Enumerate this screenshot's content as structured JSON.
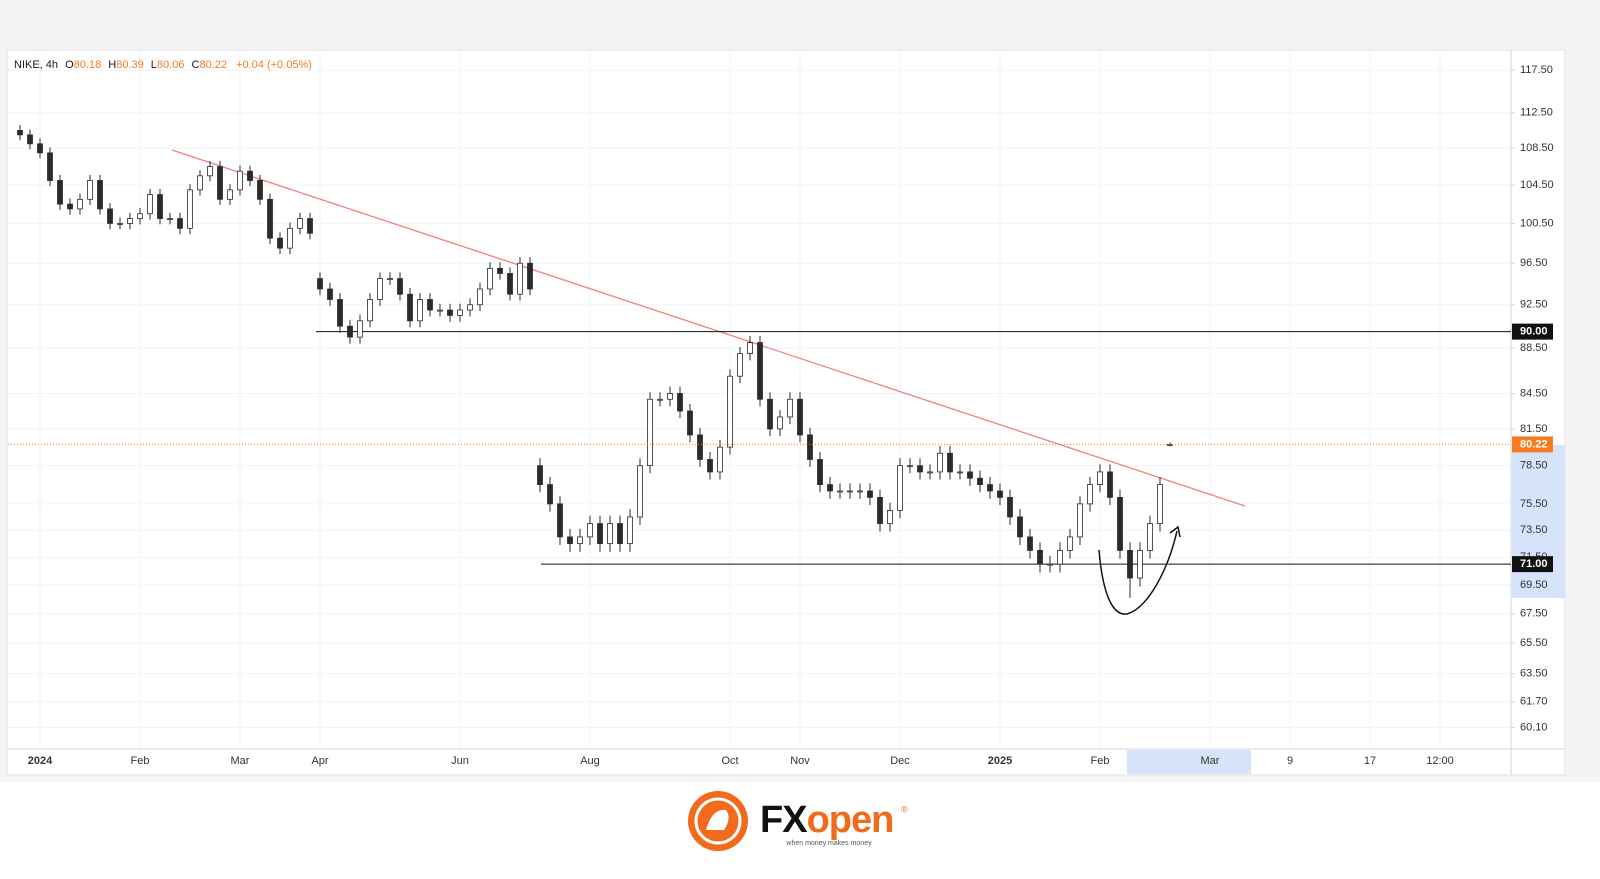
{
  "chart_data": {
    "type": "candlestick",
    "legend": {
      "symbol": "NIKE, 4h",
      "o": "O",
      "h": "H",
      "l": "L",
      "c": "C",
      "change_label": "+0.04 (+0.05%)"
    },
    "log_scale": true,
    "grid": true,
    "up_color": "#ffffff",
    "down_color": "#2b2b2b",
    "edge_color": "#2b2b2b",
    "last_price_color": "#f57c1f",
    "trendline_color": "#f08080",
    "level_color": "#111111",
    "ylim": [
      58.8,
      119.7
    ],
    "yticks": [
      {
        "value": 117.5,
        "label": "117.50"
      },
      {
        "value": 112.5,
        "label": "112.50"
      },
      {
        "value": 108.5,
        "label": "108.50"
      },
      {
        "value": 104.5,
        "label": "104.50"
      },
      {
        "value": 100.5,
        "label": "100.50"
      },
      {
        "value": 96.5,
        "label": "96.50"
      },
      {
        "value": 92.5,
        "label": "92.50"
      },
      {
        "value": 88.5,
        "label": "88.50"
      },
      {
        "value": 84.5,
        "label": "84.50"
      },
      {
        "value": 81.5,
        "label": "81.50"
      },
      {
        "value": 78.5,
        "label": "78.50"
      },
      {
        "value": 75.5,
        "label": "75.50"
      },
      {
        "value": 73.5,
        "label": "73.50"
      },
      {
        "value": 71.5,
        "label": "71.50"
      },
      {
        "value": 69.5,
        "label": "69.50"
      },
      {
        "value": 67.5,
        "label": "67.50"
      },
      {
        "value": 65.5,
        "label": "65.50"
      },
      {
        "value": 63.5,
        "label": "63.50"
      },
      {
        "value": 61.7,
        "label": "61.70"
      },
      {
        "value": 60.1,
        "label": "60.10"
      }
    ],
    "levels": [
      {
        "value": 90,
        "label": "90.00"
      },
      {
        "value": 71,
        "label": "71.00"
      }
    ],
    "categories": [
      null,
      null,
      "2024",
      null,
      null,
      null,
      null,
      null,
      null,
      null,
      null,
      null,
      "Feb",
      null,
      null,
      null,
      null,
      null,
      null,
      null,
      null,
      null,
      "Mar",
      null,
      null,
      null,
      null,
      null,
      null,
      null,
      "Apr",
      null,
      null,
      null,
      null,
      null,
      null,
      null,
      null,
      null,
      null,
      null,
      null,
      null,
      "Jun",
      null,
      null,
      null,
      null,
      null,
      null,
      null,
      null,
      null,
      null,
      null,
      null,
      "Aug",
      null,
      null,
      null,
      null,
      null,
      null,
      null,
      null,
      null,
      null,
      null,
      null,
      null,
      "Oct",
      null,
      null,
      null,
      null,
      null,
      null,
      "Nov",
      null,
      null,
      null,
      null,
      null,
      null,
      null,
      null,
      null,
      "Dec",
      null,
      null,
      null,
      null,
      null,
      null,
      null,
      null,
      null,
      "2025",
      null,
      null,
      null,
      null,
      null,
      null,
      null,
      null,
      null,
      "Feb",
      null,
      null,
      null,
      null,
      null,
      null,
      null,
      null,
      null,
      null,
      "Mar",
      null,
      null,
      null,
      null,
      null,
      null,
      null,
      "9",
      null,
      null,
      null,
      null,
      null,
      null,
      null,
      "17",
      null,
      null,
      null,
      null,
      null,
      null,
      "12:00",
      null,
      null,
      null,
      null,
      null,
      null
    ],
    "open": [
      110.5,
      110,
      109,
      108,
      105,
      102.5,
      102,
      103,
      105,
      102,
      100.5,
      100.5,
      101,
      101.5,
      103.5,
      101,
      101,
      100,
      104,
      105.5,
      106.5,
      103,
      104,
      106,
      105,
      103,
      99,
      98,
      100,
      101,
      95,
      94,
      93,
      90.5,
      89.5,
      91,
      93,
      95,
      95,
      93.5,
      91,
      93,
      92,
      92,
      91.5,
      92,
      92.5,
      94,
      96,
      95.5,
      93.5,
      96.5,
      78.5,
      77,
      75.5,
      73,
      72.5,
      73,
      74,
      72.5,
      74,
      72.5,
      74.5,
      78.5,
      84,
      84,
      84.5,
      83,
      81,
      79,
      78,
      80,
      86,
      88,
      89,
      84,
      81.5,
      82.5,
      84,
      81,
      79,
      77,
      76.5,
      76.5,
      76.5,
      76.5,
      76,
      74,
      75,
      78.5,
      78.5,
      78,
      78,
      79.5,
      78,
      78,
      77.5,
      77,
      76.5,
      76,
      74.5,
      73,
      72,
      71,
      71,
      72,
      73,
      75.5,
      77,
      78,
      76,
      72,
      70,
      72,
      74,
      80.18,
      null,
      null,
      null,
      null,
      null,
      null,
      null,
      null,
      null,
      null,
      null,
      null,
      null,
      null,
      null,
      null,
      null,
      null,
      null,
      null,
      null,
      null,
      null,
      null,
      null,
      null,
      null,
      null,
      null,
      null,
      null,
      null,
      null
    ],
    "high": [
      111.1,
      110.6,
      109.6,
      108.6,
      105.6,
      103.1,
      103.6,
      105.6,
      105.6,
      102.6,
      101.1,
      101.6,
      102.1,
      104.1,
      104.1,
      101.6,
      101.6,
      104.6,
      106.1,
      107.1,
      107.1,
      104.6,
      106.6,
      106.6,
      105.6,
      103.6,
      99.6,
      100.6,
      101.6,
      101.6,
      95.6,
      94.6,
      93.6,
      91.1,
      91.6,
      93.6,
      95.6,
      95.6,
      95.6,
      94.1,
      93.6,
      93.6,
      92.6,
      92.6,
      92.6,
      93.1,
      94.6,
      96.6,
      96.6,
      96.1,
      97.1,
      97.1,
      79.1,
      77.6,
      76.1,
      73.6,
      73.6,
      74.6,
      74.6,
      74.6,
      74.6,
      75.1,
      79.1,
      84.6,
      84.6,
      85.1,
      85.1,
      83.6,
      81.6,
      79.6,
      80.6,
      86.6,
      88.6,
      89.6,
      89.6,
      84.6,
      83.1,
      84.6,
      84.6,
      81.6,
      79.6,
      77.6,
      77.1,
      77.1,
      77.1,
      77.1,
      76.6,
      75.6,
      79.1,
      79.1,
      79.1,
      78.6,
      80.1,
      80.1,
      78.6,
      78.6,
      78.1,
      77.6,
      77.1,
      76.6,
      75.1,
      73.6,
      72.6,
      71.6,
      72.6,
      73.6,
      76.1,
      77.6,
      78.6,
      78.6,
      76.6,
      72.6,
      72.6,
      74.6,
      77.6,
      80.39,
      null,
      null,
      null,
      null,
      null,
      null,
      null,
      null,
      null,
      null,
      null,
      null,
      null,
      null,
      null,
      null,
      null,
      null,
      null,
      null,
      null,
      null,
      null,
      null,
      null,
      null,
      null,
      null,
      null,
      null,
      null,
      null,
      null
    ],
    "low": [
      109.4,
      108.4,
      107.4,
      104.4,
      101.9,
      101.4,
      101.4,
      102.4,
      101.4,
      99.9,
      99.9,
      99.9,
      100.4,
      100.9,
      100.4,
      100.4,
      99.4,
      99.4,
      103.4,
      104.9,
      102.4,
      102.4,
      103.4,
      104.4,
      102.4,
      98.4,
      97.4,
      97.4,
      99.4,
      98.9,
      93.4,
      92.4,
      89.9,
      88.9,
      88.9,
      90.4,
      92.4,
      94.4,
      92.9,
      90.4,
      90.4,
      91.4,
      91.4,
      90.9,
      90.9,
      91.4,
      91.9,
      93.4,
      94.9,
      92.9,
      92.9,
      93.4,
      76.4,
      74.9,
      72.4,
      71.9,
      71.9,
      72.4,
      71.9,
      71.9,
      71.9,
      71.9,
      73.9,
      77.9,
      83.4,
      83.4,
      82.4,
      80.4,
      78.4,
      77.4,
      77.4,
      79.4,
      85.4,
      87.4,
      83.4,
      80.9,
      80.9,
      81.9,
      80.4,
      78.4,
      76.4,
      75.9,
      75.9,
      75.9,
      75.9,
      75.4,
      73.4,
      73.4,
      74.4,
      77.9,
      77.4,
      77.4,
      77.4,
      77.4,
      77.4,
      76.9,
      76.4,
      75.9,
      75.4,
      73.9,
      72.4,
      71.4,
      70.4,
      70.4,
      70.4,
      71.4,
      72.4,
      74.9,
      76.4,
      75.4,
      71.4,
      68.6,
      69.4,
      71.4,
      73.4,
      80.06,
      null,
      null,
      null,
      null,
      null,
      null,
      null,
      null,
      null,
      null,
      null,
      null,
      null,
      null,
      null,
      null,
      null,
      null,
      null,
      null,
      null,
      null,
      null,
      null,
      null,
      null,
      null,
      null,
      null,
      null,
      null,
      null,
      null
    ],
    "close": [
      110,
      109,
      108,
      105,
      102.5,
      102,
      103,
      105,
      102,
      100.5,
      100.5,
      101,
      101.5,
      103.5,
      101,
      101,
      100,
      104,
      105.5,
      106.5,
      103,
      104,
      106,
      105,
      103,
      99,
      98,
      100,
      101,
      99.5,
      94,
      93,
      90.5,
      89.5,
      91,
      93,
      95,
      95,
      93.5,
      91,
      93,
      92,
      92,
      91.5,
      92,
      92.5,
      94,
      96,
      95.5,
      93.5,
      96.5,
      94,
      77,
      75.5,
      73,
      72.5,
      73,
      74,
      72.5,
      74,
      72.5,
      74.5,
      78.5,
      84,
      84,
      84.5,
      83,
      81,
      79,
      78,
      80,
      86,
      88,
      89,
      84,
      81.5,
      82.5,
      84,
      81,
      79,
      77,
      76.5,
      76.5,
      76.5,
      76.5,
      76,
      74,
      75,
      78.5,
      78.5,
      78,
      78,
      79.5,
      78,
      78,
      77.5,
      77,
      76.5,
      76,
      74.5,
      73,
      72,
      71,
      71,
      72,
      73,
      75.5,
      77,
      78,
      76,
      72,
      70,
      72,
      74,
      77,
      80.22,
      null,
      null,
      null,
      null,
      null,
      null,
      null,
      null,
      null,
      null,
      null,
      null,
      null,
      null,
      null,
      null,
      null,
      null,
      null,
      null,
      null,
      null,
      null,
      null,
      null,
      null,
      null,
      null,
      null,
      null,
      null,
      null,
      null
    ]
  },
  "footer": {
    "brand_left": "FX",
    "brand_right": "open",
    "registered": "®",
    "tagline": "when money makes money"
  }
}
